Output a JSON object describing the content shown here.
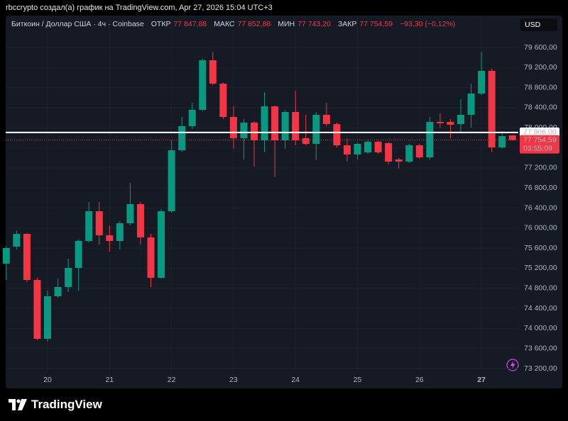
{
  "header": {
    "caption": "rbccrypto создал(а) график на TradingView.com, Apr 27, 2026 15:04 UTC+3",
    "currency": "USD",
    "brand": "TradingView"
  },
  "chart_data": {
    "type": "candlestick",
    "title": "Биткоин / Доллар США · 4ч · Coinbase",
    "ohlc_legend": {
      "open_label": "ОТКР",
      "open": "77 847,88",
      "high_label": "МАКС",
      "high": "77 852,88",
      "low_label": "МИН",
      "low": "77 743,20",
      "close_label": "ЗАКР",
      "close": "77 754,59",
      "change": "−93,30 (−0,12%)"
    },
    "categories": [
      null,
      null,
      null,
      null,
      "20",
      null,
      null,
      null,
      null,
      null,
      "21",
      null,
      null,
      null,
      null,
      null,
      "22",
      null,
      null,
      null,
      null,
      null,
      "23",
      null,
      null,
      null,
      null,
      null,
      "24",
      null,
      null,
      null,
      null,
      null,
      "25",
      null,
      null,
      null,
      null,
      null,
      "26",
      null,
      null,
      null,
      null,
      null,
      "27",
      null,
      null,
      null
    ],
    "open": [
      75291,
      75630,
      75884,
      74966,
      73793,
      74641,
      74825,
      75206,
      75743,
      76336,
      75856,
      75743,
      76096,
      76478,
      75814,
      75008,
      76336,
      77551,
      78032,
      78357,
      79346,
      78879,
      78215,
      77792,
      78102,
      77749,
      78427,
      77749,
      78314,
      77792,
      77679,
      78258,
      78074,
      77650,
      77467,
      77509,
      77721,
      77693,
      77368,
      77325,
      77650,
      77410,
      78117,
      78117,
      78074,
      78258,
      78682,
      79134,
      77608,
      77847.88
    ],
    "high": [
      75640,
      75955,
      75900,
      75008,
      74754,
      74994,
      75390,
      75771,
      76520,
      76520,
      76054,
      76139,
      76902,
      76520,
      75884,
      76380,
      77749,
      78215,
      78498,
      79374,
      79515,
      78900,
      78427,
      78173,
      78130,
      78710,
      78440,
      78357,
      78738,
      78258,
      78314,
      78498,
      78100,
      77792,
      77700,
      77750,
      77740,
      77720,
      77400,
      77679,
      77680,
      78215,
      78286,
      78173,
      78569,
      78879,
      79515,
      79176,
      77933,
      77852.88
    ],
    "low": [
      74966,
      75574,
      74924,
      73765,
      73737,
      74613,
      74726,
      74754,
      75715,
      75672,
      75531,
      75573,
      76054,
      75672,
      74825,
      74990,
      76310,
      77520,
      77975,
      78330,
      78851,
      78173,
      77580,
      77368,
      77227,
      77509,
      77015,
      77580,
      77650,
      77650,
      77368,
      78032,
      77608,
      77325,
      77368,
      77480,
      77480,
      77269,
      77184,
      77300,
      77380,
      77368,
      78003,
      77792,
      77890,
      78003,
      78650,
      77509,
      77580,
      77743.2
    ],
    "close": [
      75602,
      75884,
      74966,
      73793,
      74641,
      74825,
      75206,
      75743,
      76336,
      75856,
      75743,
      76096,
      76478,
      75814,
      75008,
      76336,
      77551,
      78032,
      78357,
      79346,
      78879,
      78215,
      77792,
      78102,
      77749,
      78427,
      77749,
      78314,
      77749,
      77679,
      78258,
      78074,
      77650,
      77467,
      77679,
      77721,
      77509,
      77325,
      77325,
      77650,
      77410,
      78117,
      78090,
      78060,
      78258,
      78682,
      79134,
      77608,
      77834,
      77754.59
    ],
    "up_color": "#089981",
    "down_color": "#f23645",
    "ylim": [
      73129,
      80236
    ],
    "yticks": [
      {
        "value": 73200,
        "label": "73 200,00"
      },
      {
        "value": 73600,
        "label": "73 600,00"
      },
      {
        "value": 74000,
        "label": "74 000,00"
      },
      {
        "value": 74400,
        "label": "74 400,00"
      },
      {
        "value": 74800,
        "label": "74 800,00"
      },
      {
        "value": 75200,
        "label": "75 200,00"
      },
      {
        "value": 75600,
        "label": "75 600,00"
      },
      {
        "value": 76000,
        "label": "76 000,00"
      },
      {
        "value": 76400,
        "label": "76 400,00"
      },
      {
        "value": 76800,
        "label": "76 800,00"
      },
      {
        "value": 77200,
        "label": "77 200,00"
      },
      {
        "value": 77600,
        "label": "77 600,00"
      },
      {
        "value": 78000,
        "label": "78 000,00"
      },
      {
        "value": 78400,
        "label": "78 400,00"
      },
      {
        "value": 78800,
        "label": "78 800,00"
      },
      {
        "value": 79200,
        "label": "79 200,00"
      },
      {
        "value": 79600,
        "label": "79 600,00"
      }
    ],
    "grid": true,
    "horizontal_line": {
      "value": 77906,
      "label": "77 906,00"
    },
    "last_price": {
      "value": 77754.59,
      "label": "77 754,59",
      "countdown": "03:55:09"
    }
  }
}
